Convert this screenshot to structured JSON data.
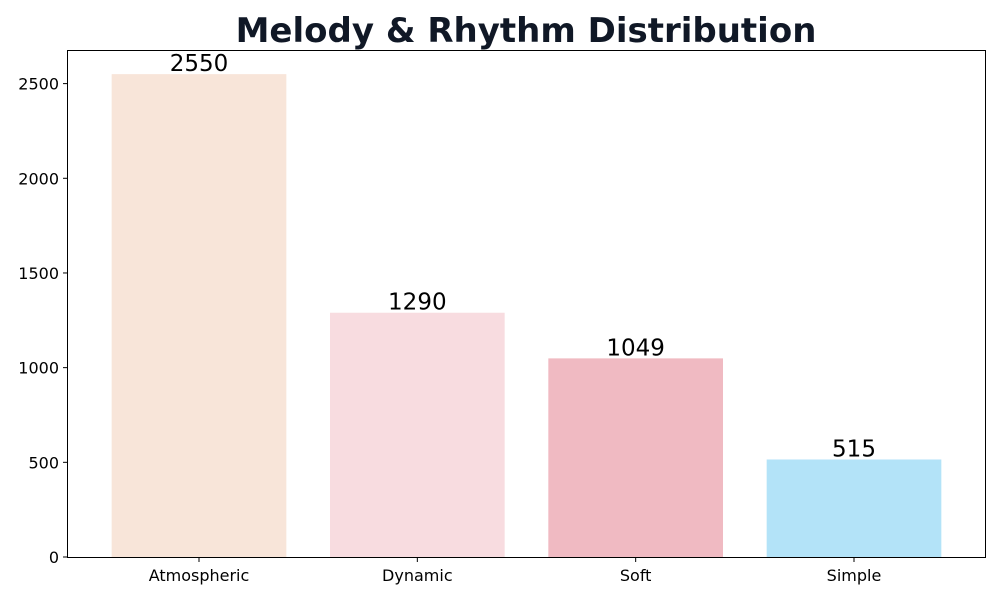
{
  "chart_data": {
    "type": "bar",
    "title": "Melody & Rhythm Distribution",
    "xlabel": "",
    "ylabel": "",
    "categories": [
      "Atmospheric",
      "Dynamic",
      "Soft",
      "Simple"
    ],
    "values": [
      2550,
      1290,
      1049,
      515
    ],
    "colors": [
      "#f8e5d9",
      "#f8dce0",
      "#f0bac2",
      "#b3e3f8"
    ],
    "ylim": [
      0,
      2677.5
    ],
    "yticks": [
      0,
      500,
      1000,
      1500,
      2000,
      2500
    ],
    "grid": false,
    "legend": false,
    "data_labels": true
  }
}
